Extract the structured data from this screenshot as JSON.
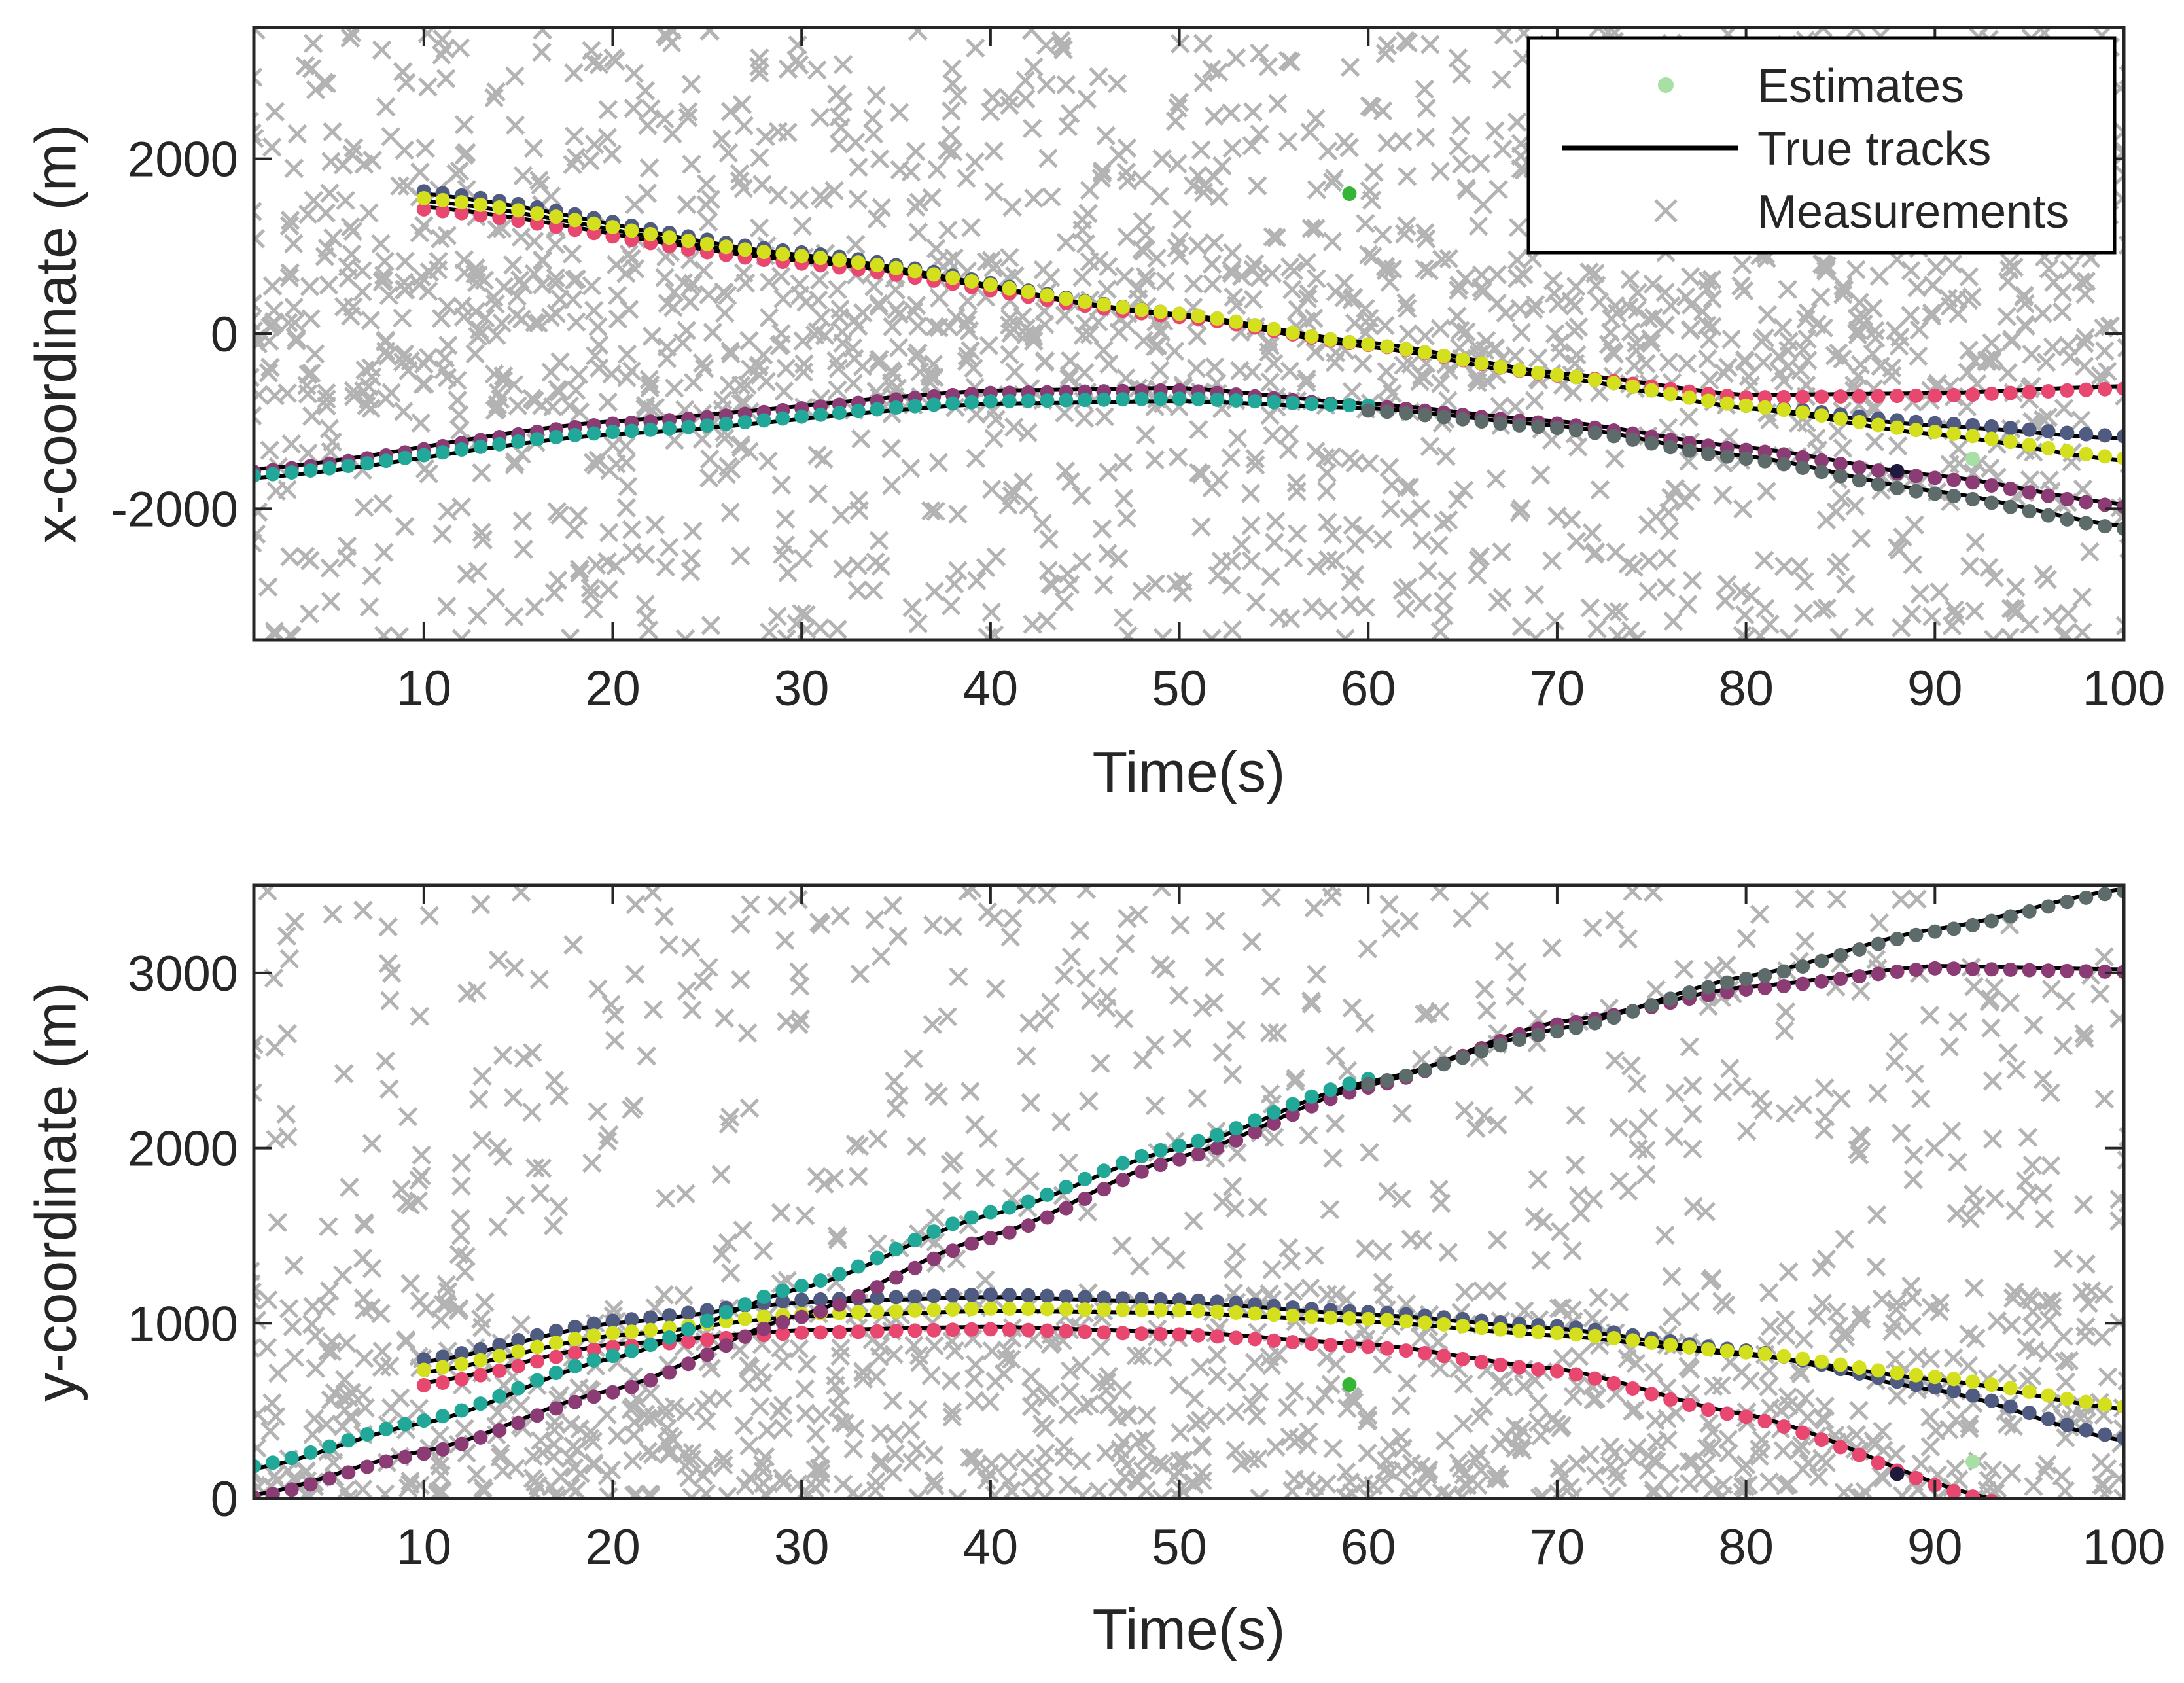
{
  "chart_data": [
    {
      "type": "scatter",
      "panel": "top",
      "xlabel": "Time(s)",
      "ylabel": "x-coordinate (m)",
      "xlim": [
        1,
        100
      ],
      "ylim": [
        -3500,
        3500
      ],
      "xticks": [
        10,
        20,
        30,
        40,
        50,
        60,
        70,
        80,
        90,
        100
      ],
      "yticks": [
        -2000,
        0,
        2000
      ],
      "ytick_labels": [
        "-2000",
        "0",
        "2000"
      ],
      "legend": {
        "position": "top-right",
        "entries": [
          "Estimates",
          "True tracks",
          "Measurements"
        ]
      },
      "measurements": {
        "name": "Measurements",
        "color": "#b3b3b3",
        "marker": "x",
        "count_per_step": 18
      },
      "true_tracks": [
        {
          "name": "track-1",
          "t_start": 10,
          "t_end": 100,
          "values_at": {
            "10": 1600,
            "30": 900,
            "50": 200,
            "60": -150,
            "70": -500,
            "80": -850,
            "90": -1050,
            "100": -1200
          }
        },
        {
          "name": "track-2",
          "t_start": 10,
          "t_end": 100,
          "values_at": {
            "10": 1450,
            "30": 830,
            "50": 220,
            "60": -100,
            "70": -450,
            "80": -700,
            "90": -680,
            "100": -600
          }
        },
        {
          "name": "track-3",
          "t_start": 10,
          "t_end": 100,
          "values_at": {
            "10": 1520,
            "30": 860,
            "50": 200,
            "60": -150,
            "70": -500,
            "80": -850,
            "90": -1150,
            "100": -1450
          }
        },
        {
          "name": "track-4",
          "t_start": 1,
          "t_end": 100,
          "values_at": {
            "1": -1550,
            "20": -1000,
            "40": -650,
            "50": -620,
            "60": -800,
            "70": -1000,
            "80": -1300,
            "90": -1620,
            "100": -1950
          }
        },
        {
          "name": "track-5",
          "t_start": 1,
          "t_end": 100,
          "values_at": {
            "1": -1650,
            "20": -1150,
            "40": -800,
            "50": -770,
            "60": -850,
            "70": -1050,
            "80": -1400,
            "90": -1800,
            "100": -2200
          }
        }
      ],
      "estimates": [
        {
          "name": "est-1",
          "color": "#4f5b80",
          "t_start": 10,
          "t_end": 100,
          "track": "track-1"
        },
        {
          "name": "est-2",
          "color": "#e8476f",
          "t_start": 10,
          "t_end": 100,
          "track": "track-2"
        },
        {
          "name": "est-3",
          "color": "#d4e01e",
          "t_start": 10,
          "t_end": 100,
          "track": "track-3"
        },
        {
          "name": "est-4",
          "color": "#8b3c74",
          "t_start": 1,
          "t_end": 100,
          "track": "track-4"
        },
        {
          "name": "est-5",
          "color": "#22a898",
          "t_start": 1,
          "t_end": 60,
          "track": "track-5"
        },
        {
          "name": "est-6",
          "color": "#5e6b6b",
          "t_start": 60,
          "t_end": 100,
          "track": "track-5"
        }
      ],
      "stray_estimates": [
        {
          "t": 59,
          "value": 1600,
          "color": "#35b535"
        },
        {
          "t": 92,
          "value": -1430,
          "color": "#a8dfa5"
        },
        {
          "t": 88,
          "value": -1570,
          "color": "#1e1a3c"
        }
      ]
    },
    {
      "type": "scatter",
      "panel": "bottom",
      "xlabel": "Time(s)",
      "ylabel": "y-coordinate (m)",
      "xlim": [
        1,
        100
      ],
      "ylim": [
        0,
        3500
      ],
      "xticks": [
        10,
        20,
        30,
        40,
        50,
        60,
        70,
        80,
        90,
        100
      ],
      "yticks": [
        0,
        1000,
        2000,
        3000
      ],
      "ytick_labels": [
        "0",
        "1000",
        "2000",
        "3000"
      ],
      "measurements": {
        "name": "Measurements",
        "color": "#b3b3b3",
        "marker": "x",
        "count_per_step": 14
      },
      "true_tracks": [
        {
          "name": "track-1",
          "t_start": 10,
          "t_end": 100,
          "values_at": {
            "10": 780,
            "20": 1000,
            "30": 1120,
            "40": 1150,
            "50": 1120,
            "60": 1050,
            "70": 970,
            "80": 830,
            "90": 620,
            "100": 330
          }
        },
        {
          "name": "track-2",
          "t_start": 10,
          "t_end": 93,
          "values_at": {
            "10": 660,
            "20": 880,
            "30": 960,
            "40": 980,
            "50": 950,
            "60": 880,
            "70": 740,
            "80": 480,
            "93": 0
          }
        },
        {
          "name": "track-3",
          "t_start": 10,
          "t_end": 100,
          "values_at": {
            "10": 720,
            "20": 930,
            "30": 1040,
            "40": 1070,
            "50": 1060,
            "60": 1010,
            "70": 930,
            "80": 820,
            "90": 680,
            "100": 510
          }
        },
        {
          "name": "track-4",
          "t_start": 1,
          "t_end": 100,
          "values_at": {
            "1": 20,
            "10": 270,
            "20": 620,
            "30": 1050,
            "40": 1500,
            "50": 1950,
            "60": 2360,
            "70": 2720,
            "80": 2920,
            "90": 3040,
            "100": 3020
          }
        },
        {
          "name": "track-5",
          "t_start": 1,
          "t_end": 100,
          "values_at": {
            "1": 170,
            "10": 430,
            "20": 800,
            "30": 1200,
            "40": 1620,
            "50": 2000,
            "60": 2380,
            "70": 2680,
            "80": 2980,
            "90": 3250,
            "100": 3480
          }
        }
      ],
      "estimates": [
        {
          "name": "est-1",
          "color": "#4f5b80",
          "t_start": 10,
          "t_end": 100,
          "track": "track-1"
        },
        {
          "name": "est-2",
          "color": "#e8476f",
          "t_start": 10,
          "t_end": 93,
          "track": "track-2"
        },
        {
          "name": "est-3",
          "color": "#d4e01e",
          "t_start": 10,
          "t_end": 100,
          "track": "track-3"
        },
        {
          "name": "est-4",
          "color": "#8b3c74",
          "t_start": 1,
          "t_end": 100,
          "track": "track-4"
        },
        {
          "name": "est-5",
          "color": "#22a898",
          "t_start": 1,
          "t_end": 60,
          "track": "track-5"
        },
        {
          "name": "est-6",
          "color": "#5e6b6b",
          "t_start": 60,
          "t_end": 100,
          "track": "track-5"
        }
      ],
      "stray_estimates": [
        {
          "t": 59,
          "value": 650,
          "color": "#35b535"
        },
        {
          "t": 92,
          "value": 210,
          "color": "#a8dfa5"
        },
        {
          "t": 88,
          "value": 140,
          "color": "#1e1a3c"
        }
      ]
    }
  ],
  "colors": {
    "axis": "#262626",
    "true_track": "#000000",
    "measurement": "#b3b3b3",
    "legend_estimate": "#a8dfa5"
  }
}
